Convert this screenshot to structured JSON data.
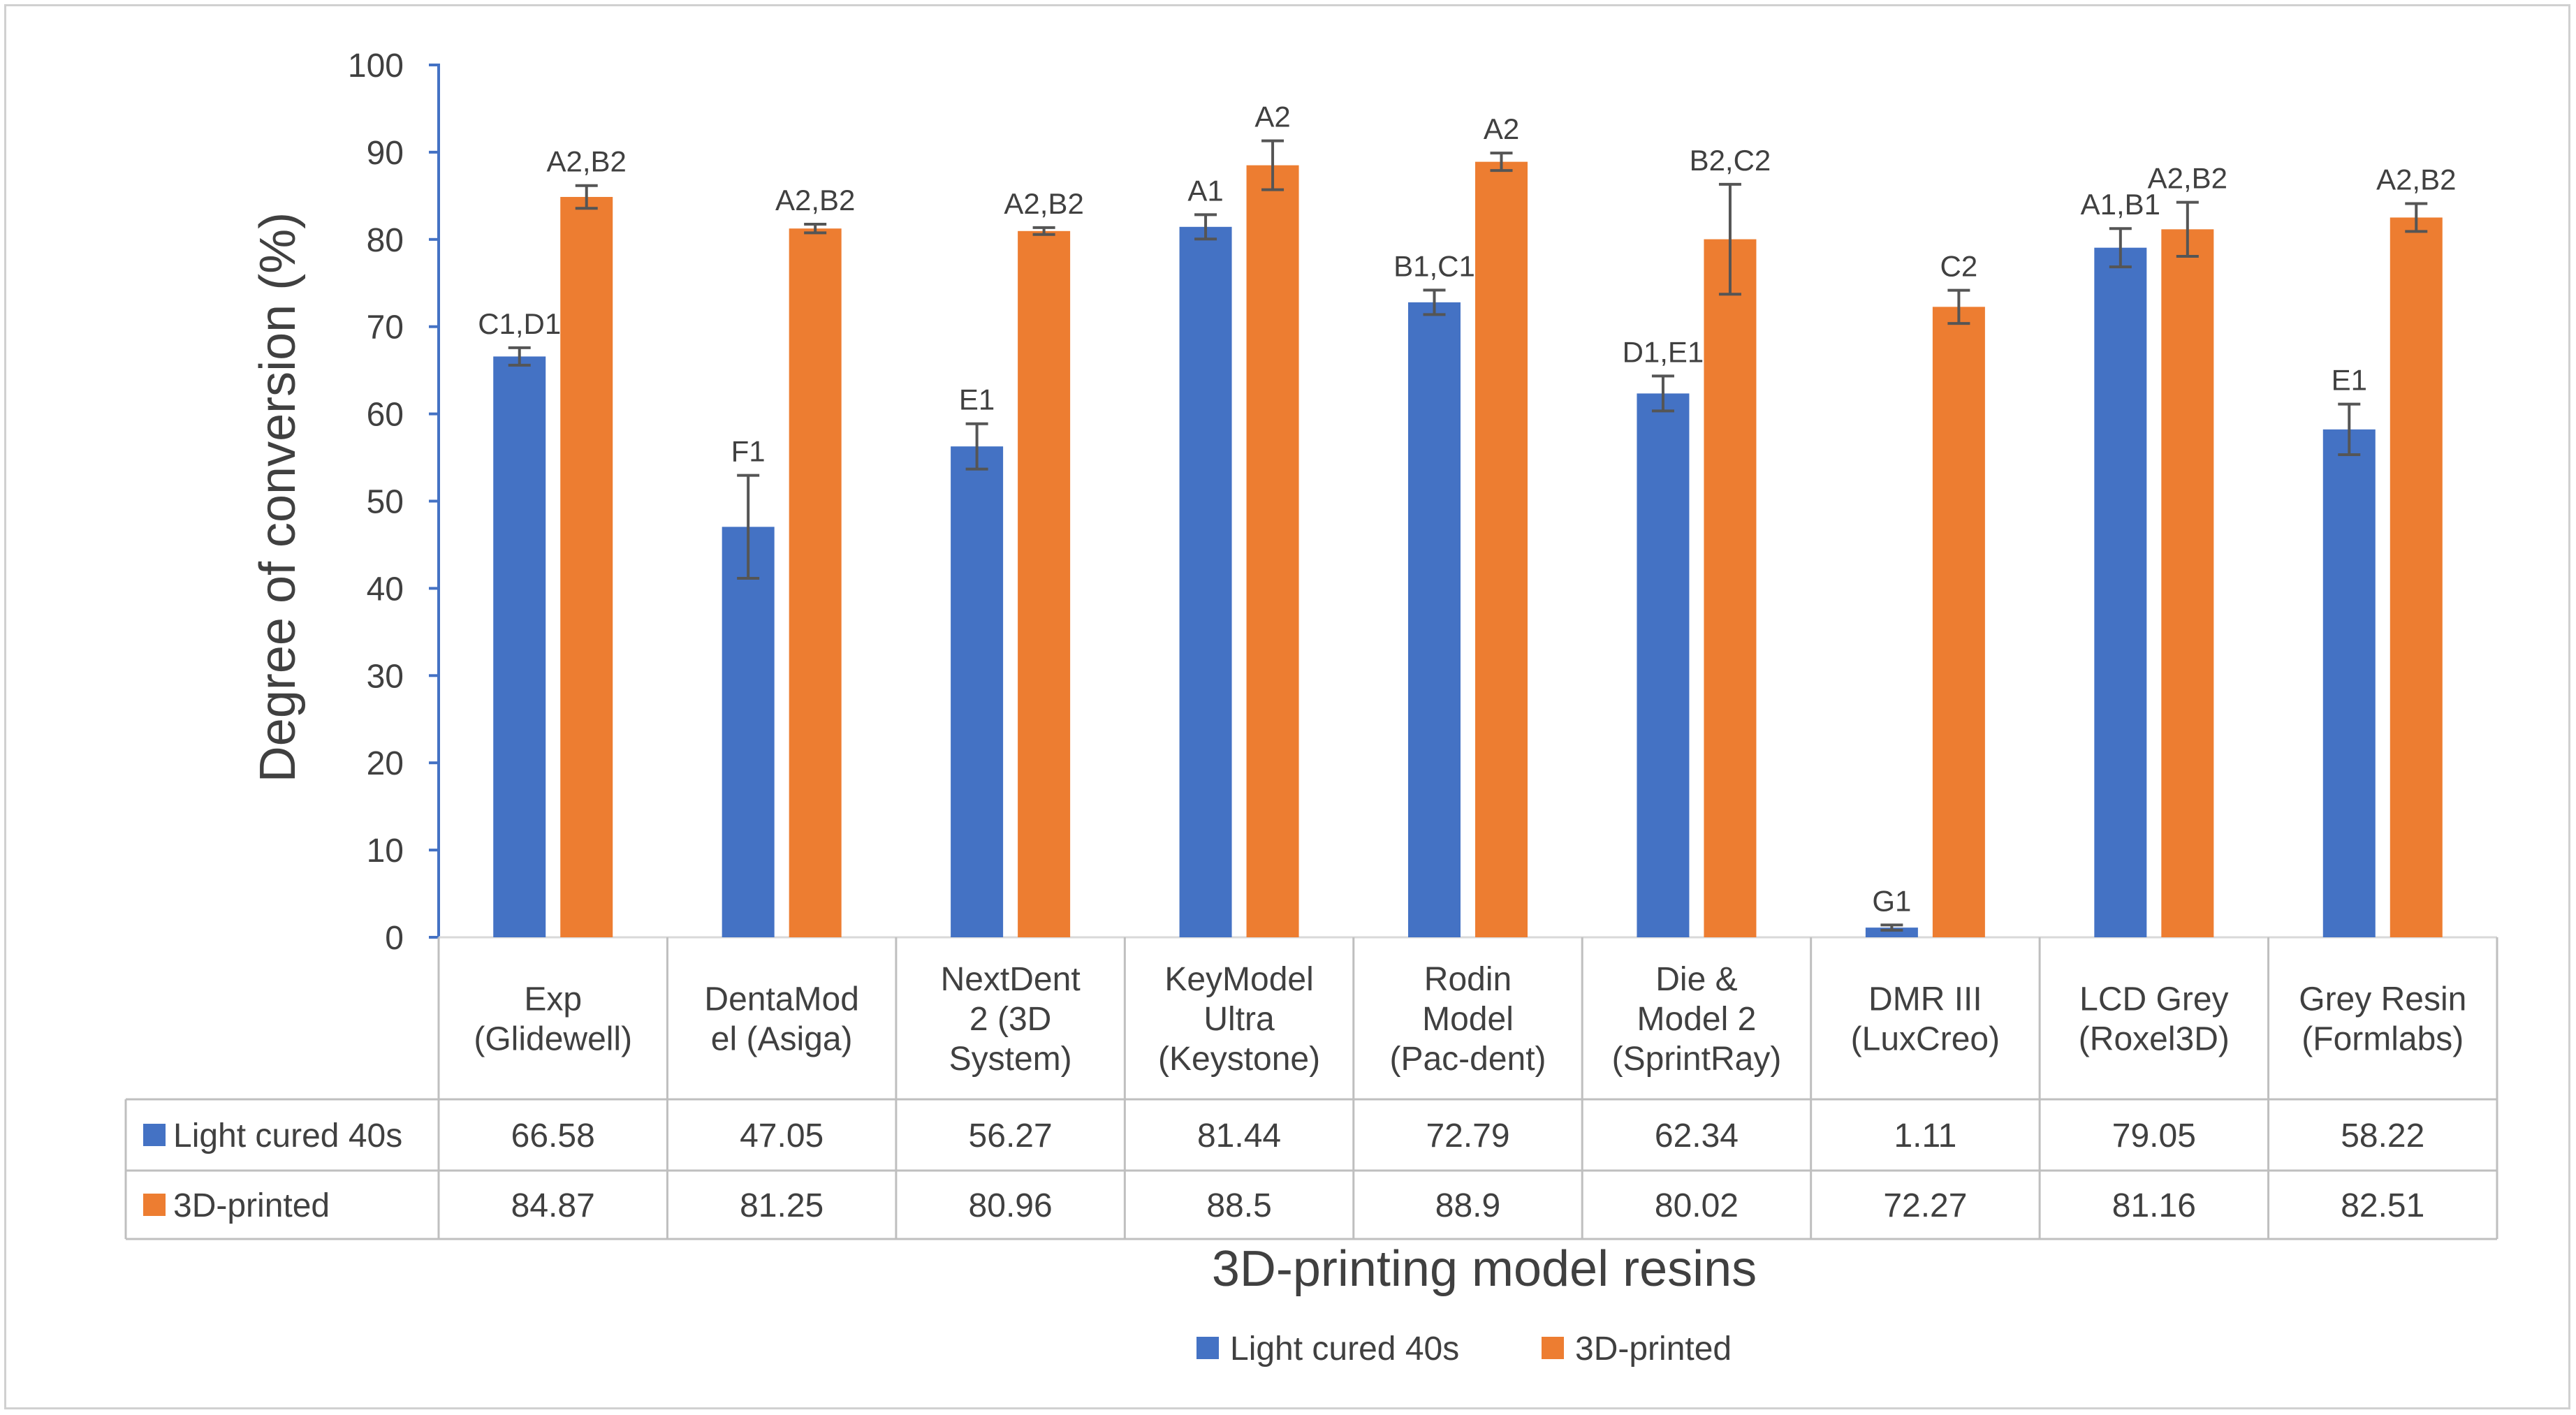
{
  "chart_data": {
    "type": "bar",
    "title": "",
    "ylabel": "Degree of conversion (%)",
    "xlabel": "3D-printing model resins",
    "ylim": [
      0,
      100
    ],
    "yticks": [
      0,
      10,
      20,
      30,
      40,
      50,
      60,
      70,
      80,
      90,
      100
    ],
    "categories": [
      [
        "Exp",
        "(Glidewell)"
      ],
      [
        "DentaMod",
        "el (Asiga)"
      ],
      [
        "NextDent",
        "2 (3D",
        "System)"
      ],
      [
        "KeyModel",
        "Ultra",
        "(Keystone)"
      ],
      [
        "Rodin",
        "Model",
        "(Pac-dent)"
      ],
      [
        "Die &",
        "Model 2",
        "(SprintRay)"
      ],
      [
        "DMR III",
        "(LuxCreo)"
      ],
      [
        "LCD Grey",
        "(Roxel3D)"
      ],
      [
        "Grey Resin",
        "(Formlabs)"
      ]
    ],
    "series": [
      {
        "name": "Light cured 40s",
        "color": "#4472C4",
        "values": [
          66.58,
          47.05,
          56.27,
          81.44,
          72.79,
          62.34,
          1.11,
          79.05,
          58.22
        ],
        "table_values": [
          "66.58",
          "47.05",
          "56.27",
          "81.44",
          "72.79",
          "62.34",
          "1.11",
          "79.05",
          "58.22"
        ],
        "errors": [
          1.0,
          5.9,
          2.6,
          1.4,
          1.4,
          2.0,
          0.3,
          2.2,
          2.9
        ],
        "labels": [
          "C1,D1",
          "F1",
          "E1",
          "A1",
          "B1,C1",
          "D1,E1",
          "G1",
          "A1,B1",
          "E1"
        ]
      },
      {
        "name": "3D-printed",
        "color": "#ED7D31",
        "values": [
          84.87,
          81.25,
          80.96,
          88.5,
          88.9,
          80.02,
          72.27,
          81.16,
          82.51
        ],
        "table_values": [
          "84.87",
          "81.25",
          "80.96",
          "88.5",
          "88.9",
          "80.02",
          "72.27",
          "81.16",
          "82.51"
        ],
        "errors": [
          1.3,
          0.5,
          0.4,
          2.8,
          1.0,
          6.3,
          1.9,
          3.1,
          1.6
        ],
        "labels": [
          "A2,B2",
          "A2,B2",
          "A2,B2",
          "A2",
          "A2",
          "B2,C2",
          "C2",
          "A2,B2",
          "A2,B2"
        ]
      }
    ],
    "legend": {
      "position": "bottom"
    }
  }
}
